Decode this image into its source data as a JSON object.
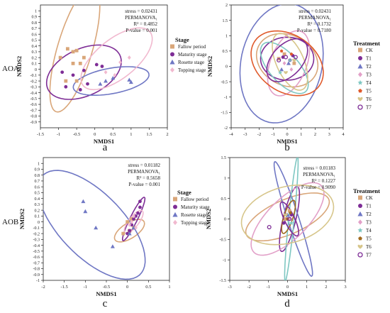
{
  "row_labels": [
    "AOA",
    "AOB"
  ],
  "chart_data": [
    {
      "panel": "a",
      "type": "scatter",
      "xlabel": "NMDS1",
      "ylabel": "NMDS2",
      "xlim": [
        -1.5,
        2
      ],
      "ylim": [
        -1,
        1.1
      ],
      "xticks": [
        -1.5,
        -1,
        -0.5,
        0,
        0.5,
        1,
        1.5,
        2
      ],
      "yticks": [
        -0.9,
        -0.8,
        -0.7,
        -0.6,
        -0.5,
        -0.4,
        -0.3,
        -0.2,
        -0.1,
        0,
        0.1,
        0.2,
        0.3,
        0.4,
        0.5,
        0.6,
        0.7,
        0.8,
        0.9,
        1
      ],
      "stats": [
        "stress = 0.02431",
        "PERMANOVA₁",
        "R² = 0.4852",
        "P-value = 0.001"
      ],
      "legend_title": "Stage",
      "legend_position": "right",
      "series": [
        {
          "name": "Fallow period",
          "color": "#d9a679",
          "marker": "square",
          "points": [
            [
              -0.75,
              0.35
            ],
            [
              -0.6,
              0.3
            ],
            [
              -0.5,
              0.32
            ],
            [
              -0.95,
              0.2
            ],
            [
              -0.4,
              0.1
            ],
            [
              -0.6,
              0.1
            ],
            [
              -0.8,
              -0.2
            ],
            [
              -0.5,
              -0.2
            ],
            [
              -0.3,
              0.2
            ]
          ],
          "ellipse": {
            "cx": -0.55,
            "cy": 0.35,
            "rx": 1.2,
            "ry": 0.45,
            "angle": 62
          }
        },
        {
          "name": "Maturity stage",
          "color": "#7e2d96",
          "marker": "circle",
          "points": [
            [
              -0.9,
              -0.05
            ],
            [
              -0.6,
              -0.1
            ],
            [
              -0.3,
              -0.02
            ],
            [
              0.2,
              0.05
            ],
            [
              -0.4,
              -0.35
            ],
            [
              -0.8,
              -0.3
            ],
            [
              0.05,
              0.08
            ],
            [
              -0.2,
              -0.25
            ]
          ],
          "ellipse": {
            "cx": -0.3,
            "cy": -0.05,
            "rx": 1.05,
            "ry": 0.42,
            "angle": 12
          }
        },
        {
          "name": "Rosette stage",
          "color": "#6f77c4",
          "marker": "triangle",
          "points": [
            [
              0.3,
              -0.2
            ],
            [
              0.5,
              -0.15
            ],
            [
              0.95,
              -0.18
            ],
            [
              0.15,
              -0.25
            ],
            [
              1.0,
              -0.22
            ]
          ],
          "ellipse": {
            "cx": 0.45,
            "cy": -0.2,
            "rx": 1.05,
            "ry": 0.22,
            "angle": 6
          }
        },
        {
          "name": "Topping stage",
          "color": "#f1b9cf",
          "marker": "diamond",
          "points": [
            [
              0.55,
              -0.1
            ],
            [
              0.7,
              0.12
            ],
            [
              0.3,
              -0.05
            ],
            [
              0.95,
              0.2
            ]
          ],
          "ellipse": {
            "cx": 0.6,
            "cy": 0.18,
            "rx": 1.05,
            "ry": 0.38,
            "angle": 22
          }
        }
      ]
    },
    {
      "panel": "b",
      "type": "scatter",
      "xlabel": "NMDS1",
      "ylabel": "NMDS2",
      "xlim": [
        -4,
        4
      ],
      "ylim": [
        -2,
        2
      ],
      "xticks": [
        -4,
        -3,
        -2,
        -1,
        0,
        1,
        2,
        3,
        4
      ],
      "yticks": [
        -2,
        -1.5,
        -1,
        -0.5,
        0,
        0.5,
        1,
        1.5,
        2
      ],
      "stats": [
        "stress = 0.02431",
        "PERMANOVA₁",
        "R² = 0.1732",
        "P-value = 0.7180"
      ],
      "legend_title": "Treatment",
      "legend_position": "right",
      "series": [
        {
          "name": "CK",
          "color": "#d9a679",
          "marker": "square",
          "points": [
            [
              -0.2,
              0.4
            ],
            [
              0.5,
              0.1
            ],
            [
              -0.6,
              0.25
            ]
          ],
          "ellipse": {
            "cx": 0,
            "cy": 0.2,
            "rx": 2.2,
            "ry": 0.85,
            "angle": -5
          }
        },
        {
          "name": "T1",
          "color": "#7e2d96",
          "marker": "circle",
          "points": [
            [
              -0.3,
              0.3
            ],
            [
              0.2,
              0.2
            ],
            [
              0.4,
              0.35
            ]
          ],
          "ellipse": {
            "cx": 0,
            "cy": 0.25,
            "rx": 1.9,
            "ry": 0.7,
            "angle": 0
          }
        },
        {
          "name": "T2",
          "color": "#6f77c4",
          "marker": "triangle",
          "points": [
            [
              0.1,
              0.1
            ],
            [
              -0.4,
              -0.1
            ]
          ],
          "ellipse": {
            "cx": -0.4,
            "cy": 0.1,
            "rx": 3.0,
            "ry": 1.9,
            "angle": 10
          }
        },
        {
          "name": "T3",
          "color": "#e2a0c8",
          "marker": "diamond",
          "points": [
            [
              0.3,
              -0.1
            ],
            [
              -0.2,
              0.1
            ]
          ],
          "ellipse": {
            "cx": 0.1,
            "cy": 0.1,
            "rx": 1.6,
            "ry": 0.9,
            "angle": 25
          }
        },
        {
          "name": "T4",
          "color": "#7ec7c2",
          "marker": "star",
          "points": [
            [
              0.2,
              0.2
            ],
            [
              -0.5,
              -0.2
            ]
          ],
          "ellipse": {
            "cx": -0.2,
            "cy": -0.05,
            "rx": 1.8,
            "ry": 0.6,
            "angle": -20
          }
        },
        {
          "name": "T5",
          "color": "#e05a2b",
          "marker": "pentagon",
          "points": [
            [
              -0.4,
              0.5
            ],
            [
              0.3,
              0.4
            ]
          ],
          "ellipse": {
            "cx": 0,
            "cy": 0.1,
            "rx": 2.6,
            "ry": 1.0,
            "angle": -8
          }
        },
        {
          "name": "T6",
          "color": "#d7c68b",
          "marker": "heart",
          "points": [
            [
              0.5,
              0.2
            ],
            [
              -0.1,
              -0.2
            ]
          ],
          "ellipse": {
            "cx": 0.2,
            "cy": 0.15,
            "rx": 1.4,
            "ry": 0.7,
            "angle": -30
          }
        },
        {
          "name": "T7",
          "color": "#7e2d96",
          "marker": "ring",
          "points": [
            [
              -0.6,
              0.2
            ],
            [
              0.6,
              0.3
            ],
            [
              -0.1,
              0.3
            ]
          ],
          "ellipse": {
            "cx": 0,
            "cy": 0.2,
            "rx": 1.5,
            "ry": 0.6,
            "angle": 15
          }
        }
      ]
    },
    {
      "panel": "c",
      "type": "scatter",
      "xlabel": "NMDS1",
      "ylabel": "NMDS2",
      "xlim": [
        -2,
        1
      ],
      "ylim": [
        -1,
        1.1
      ],
      "xticks": [
        -2,
        -1.5,
        -1,
        -0.5,
        0,
        0.5,
        1
      ],
      "yticks": [
        -1,
        -0.9,
        -0.8,
        -0.7,
        -0.6,
        -0.5,
        -0.4,
        -0.3,
        -0.2,
        -0.1,
        0,
        0.1,
        0.2,
        0.3,
        0.4,
        0.5,
        0.6,
        0.7,
        0.8,
        0.9,
        1
      ],
      "stats": [
        "stress = 0.01182",
        "PERMANOVA₁",
        "R² = 0.5658",
        "P-value = 0.001"
      ],
      "legend_title": "Stage",
      "legend_position": "right",
      "series": [
        {
          "name": "Fallow period",
          "color": "#d9a679",
          "marker": "square",
          "points": [
            [
              0.05,
              -0.15
            ],
            [
              0.15,
              -0.1
            ],
            [
              -0.1,
              -0.2
            ],
            [
              0.0,
              0.0
            ],
            [
              0.1,
              0.05
            ]
          ],
          "ellipse": {
            "cx": 0.05,
            "cy": -0.15,
            "rx": 0.38,
            "ry": 0.14,
            "angle": 22
          }
        },
        {
          "name": "Maturity stage",
          "color": "#7e2d96",
          "marker": "circle",
          "points": [
            [
              0.3,
              0.35
            ],
            [
              0.3,
              0.25
            ],
            [
              0.25,
              0.15
            ],
            [
              0.15,
              0.05
            ],
            [
              0.1,
              -0.05
            ],
            [
              0.2,
              0.1
            ],
            [
              0.05,
              -0.15
            ],
            [
              0.0,
              -0.2
            ]
          ],
          "ellipse": {
            "cx": 0.15,
            "cy": 0.05,
            "rx": 0.45,
            "ry": 0.08,
            "angle": 55
          }
        },
        {
          "name": "Rosette stage",
          "color": "#6f77c4",
          "marker": "triangle",
          "points": [
            [
              -1.05,
              0.35
            ],
            [
              -1.0,
              0.18
            ],
            [
              -0.75,
              -0.1
            ],
            [
              -0.35,
              -0.42
            ],
            [
              0.05,
              -0.2
            ],
            [
              0.15,
              -0.1
            ]
          ],
          "ellipse": {
            "cx": -0.85,
            "cy": -0.05,
            "rx": 1.45,
            "ry": 0.62,
            "angle": -32
          }
        },
        {
          "name": "Topping stage",
          "color": "#f1b9cf",
          "marker": "diamond",
          "points": [
            [
              0.1,
              0.0
            ],
            [
              0.2,
              -0.1
            ],
            [
              0.05,
              -0.05
            ],
            [
              0.15,
              0.1
            ]
          ],
          "ellipse": {
            "cx": 0.15,
            "cy": 0.0,
            "rx": 0.28,
            "ry": 0.1,
            "angle": 40
          }
        }
      ]
    },
    {
      "panel": "d",
      "type": "scatter",
      "xlabel": "NMDS1",
      "ylabel": "NMDS2",
      "xlim": [
        -3,
        3
      ],
      "ylim": [
        -1.5,
        1.5
      ],
      "xticks": [
        -3,
        -2,
        -1,
        0,
        1,
        2,
        3
      ],
      "yticks": [
        -1.5,
        -1,
        -0.5,
        0,
        0.5,
        1,
        1.5
      ],
      "stats": [
        "stress = 0.01183",
        "PERMANOVA₁",
        "R² = 0.1227",
        "P-value = 0.9090"
      ],
      "legend_title": "Treatment",
      "legend_position": "right",
      "series": [
        {
          "name": "CK",
          "color": "#d9a679",
          "marker": "square",
          "points": [
            [
              0.1,
              0.2
            ],
            [
              -0.1,
              0.0
            ]
          ],
          "ellipse": {
            "cx": 0,
            "cy": 0.05,
            "rx": 2.2,
            "ry": 0.45,
            "angle": 10
          }
        },
        {
          "name": "T1",
          "color": "#7e2d96",
          "marker": "circle",
          "points": [
            [
              0.2,
              0.1
            ],
            [
              -0.2,
              -0.1
            ]
          ],
          "ellipse": {
            "cx": 0.1,
            "cy": 0.0,
            "rx": 0.9,
            "ry": 0.3,
            "angle": 60
          }
        },
        {
          "name": "T2",
          "color": "#6f77c4",
          "marker": "triangle",
          "points": [
            [
              0.0,
              0.1
            ]
          ],
          "ellipse": {
            "cx": 0.3,
            "cy": 0.0,
            "rx": 1.7,
            "ry": 0.25,
            "angle": -55
          }
        },
        {
          "name": "T3",
          "color": "#e2a0c8",
          "marker": "diamond",
          "points": [
            [
              0.1,
              0.0
            ]
          ],
          "ellipse": {
            "cx": 0,
            "cy": 0.0,
            "rx": 2.0,
            "ry": 0.6,
            "angle": 20
          }
        },
        {
          "name": "T4",
          "color": "#7ec7c2",
          "marker": "star",
          "points": [
            [
              0.2,
              -0.1
            ]
          ],
          "ellipse": {
            "cx": 0.2,
            "cy": 0.0,
            "rx": 1.55,
            "ry": 0.14,
            "angle": 78
          }
        },
        {
          "name": "T5",
          "color": "#a16a1e",
          "marker": "pentagon",
          "points": [
            [
              0.0,
              0.0
            ],
            [
              0.15,
              0.15
            ]
          ],
          "ellipse": {
            "cx": 0.05,
            "cy": 0.05,
            "rx": 0.5,
            "ry": 0.2,
            "angle": 50
          }
        },
        {
          "name": "T6",
          "color": "#d7c68b",
          "marker": "heart",
          "points": [
            [
              -0.1,
              0.1
            ]
          ],
          "ellipse": {
            "cx": 0,
            "cy": 0.1,
            "rx": 2.4,
            "ry": 0.7,
            "angle": 5
          }
        },
        {
          "name": "T7",
          "color": "#7e2d96",
          "marker": "ring",
          "points": [
            [
              -0.95,
              -0.2
            ],
            [
              0.1,
              0.0
            ]
          ],
          "ellipse": {
            "cx": 0.1,
            "cy": 0.0,
            "rx": 0.6,
            "ry": 0.2,
            "angle": -40
          }
        }
      ]
    }
  ]
}
